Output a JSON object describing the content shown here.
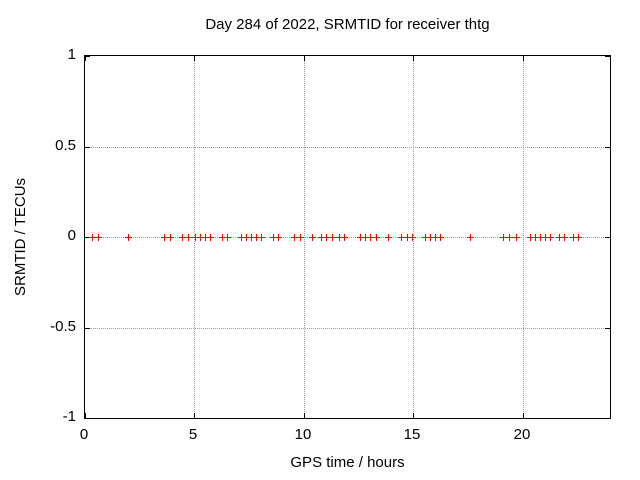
{
  "chart_data": {
    "type": "scatter",
    "title": "Day 284 of 2022, SRMTID for receiver thtg",
    "xlabel": "GPS time / hours",
    "ylabel": "SRMTID / TECUs",
    "xlim": [
      0,
      24
    ],
    "ylim": [
      -1,
      1
    ],
    "xticks": [
      0,
      5,
      10,
      15,
      20
    ],
    "xtick_labels": [
      "0",
      "5",
      "10",
      "15",
      "20"
    ],
    "yticks": [
      1,
      0.5,
      0,
      -0.5,
      -1
    ],
    "ytick_labels": [
      "1",
      "0.5",
      "0",
      "-0.5",
      "-1"
    ],
    "grid": true,
    "legend_position": "none",
    "marker": "plus",
    "marker_size_px": 7,
    "colors": {
      "marker": "#ff0000",
      "grid": "#9b9b9b",
      "axis": "#000000",
      "text": "#000000",
      "background": "#ffffff"
    },
    "series": [
      {
        "name": "SRMTID",
        "y_constant": 0,
        "x": [
          0.33,
          0.58,
          1.95,
          3.62,
          3.87,
          4.44,
          4.69,
          5.03,
          5.26,
          5.49,
          5.72,
          6.25,
          6.48,
          7.12,
          7.35,
          7.57,
          7.8,
          8.03,
          8.59,
          8.82,
          9.56,
          9.83,
          10.36,
          10.81,
          11.04,
          11.27,
          11.63,
          11.86,
          12.59,
          12.82,
          13.05,
          13.28,
          13.84,
          14.45,
          14.72,
          14.95,
          15.56,
          15.79,
          16.01,
          16.24,
          17.61,
          19.13,
          19.36,
          19.7,
          20.35,
          20.58,
          20.81,
          21.04,
          21.27,
          21.67,
          21.9,
          22.31,
          22.54
        ]
      }
    ]
  }
}
